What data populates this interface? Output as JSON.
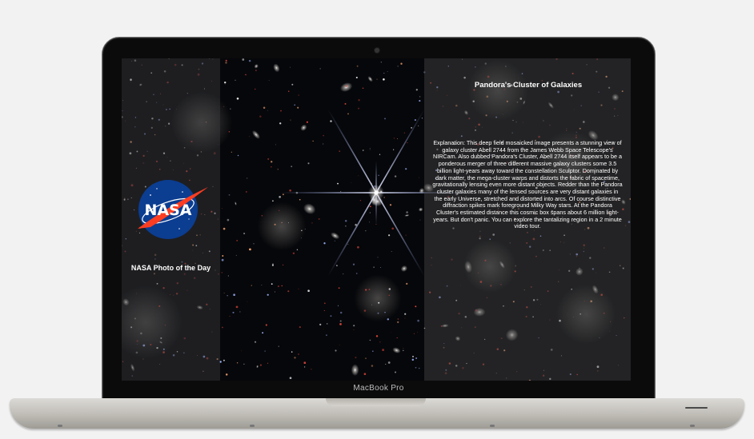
{
  "device": {
    "brand_label": "MacBook Pro"
  },
  "app": {
    "sidebar": {
      "logo_icon": "nasa-meatball-logo",
      "logo_text": "NASA",
      "caption": "NASA Photo of the Day"
    },
    "photo": {
      "title": "Pandora's Cluster of Galaxies",
      "explanation": "Explanation: This deep field mosaicked image presents a stunning view of galaxy cluster Abell 2744 from the James Webb Space Telescope's NIRCam. Also dubbed Pandora's Cluster, Abell 2744 itself appears to be a ponderous merger of three different massive galaxy clusters some 3.5 billion light-years away toward the constellation Sculptor. Dominated by dark matter, the mega-cluster warps and distorts the fabric of spacetime, gravitationally lensing even more distant objects. Redder than the Pandora cluster galaxies many of the lensed sources are very distant galaxies in the early Universe, stretched and distorted into arcs. Of course distinctive diffraction spikes mark foreground Milky Way stars. At the Pandora Cluster's estimated distance this cosmic box spans about 6 million light-years. But don't panic. You can explore the tantalizing region in a 2 minute video tour."
    }
  },
  "colors": {
    "nasa_blue": "#0b3d91",
    "nasa_red": "#fc3d21",
    "panel_text": "#ffffff"
  }
}
